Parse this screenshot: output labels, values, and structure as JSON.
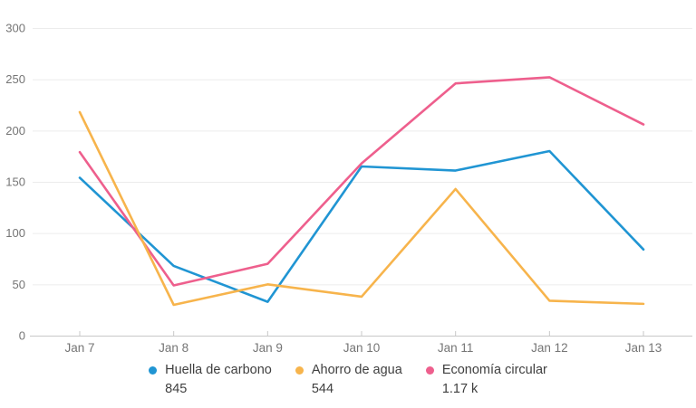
{
  "chart_data": {
    "type": "line",
    "title": "",
    "xlabel": "",
    "ylabel": "",
    "x": [
      "Jan 7",
      "Jan 8",
      "Jan 9",
      "Jan 10",
      "Jan 11",
      "Jan 12",
      "Jan 13"
    ],
    "series": [
      {
        "name": "Huella de carbono",
        "total_label": "845",
        "color": "#2095d3",
        "values": [
          154,
          68,
          33,
          165,
          161,
          180,
          84
        ]
      },
      {
        "name": "Ahorro de agua",
        "total_label": "544",
        "color": "#f7b44c",
        "values": [
          218,
          30,
          50,
          38,
          143,
          34,
          31
        ]
      },
      {
        "name": "Economía circular",
        "total_label": "1.17 k",
        "color": "#ee5f8d",
        "values": [
          179,
          49,
          70,
          168,
          246,
          252,
          206
        ]
      }
    ],
    "ylim": [
      0,
      300
    ],
    "yticks": [
      0,
      50,
      100,
      150,
      200,
      250,
      300
    ],
    "grid": true,
    "legend_position": "bottom"
  },
  "colors": {
    "background": "#ffffff",
    "grid_line": "#ececec",
    "axis_line": "#c8c8c8",
    "tick_mark": "#c8c8c8",
    "tick_label": "#757575",
    "legend_text": "#3f3f3f"
  }
}
